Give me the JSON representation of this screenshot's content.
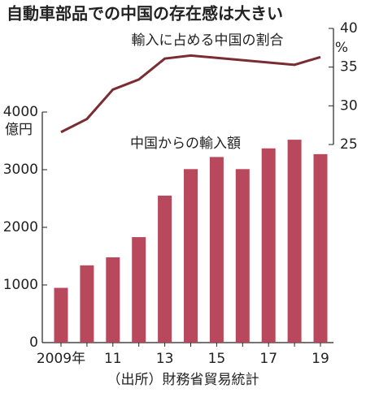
{
  "chart_data": {
    "type": "bar",
    "title": "自動車部品での中国の存在感は大きい",
    "categories": [
      "2009年",
      null,
      "11",
      null,
      "13",
      null,
      "15",
      null,
      "17",
      null,
      "19"
    ],
    "series": [
      {
        "name": "中国からの輸入額",
        "type": "bar",
        "color": "#b8495c",
        "values": [
          950,
          1340,
          1480,
          1830,
          2550,
          3010,
          3220,
          3010,
          3370,
          3520,
          3270
        ]
      },
      {
        "name": "輸入に占める中国の割合",
        "type": "line",
        "axis": "y2",
        "color": "#7a2c32",
        "values": [
          26.6,
          28.3,
          32.1,
          33.4,
          36.1,
          36.5,
          36.2,
          35.9,
          35.6,
          35.3,
          36.3
        ]
      }
    ],
    "ylim": [
      0,
      4000
    ],
    "yticks": [
      0,
      1000,
      2000,
      3000,
      4000
    ],
    "y_unit": "億円",
    "y2lim": [
      25,
      40
    ],
    "y2ticks": [
      25,
      30,
      35,
      40
    ],
    "y2_unit": "%",
    "source": "（出所）財務省貿易統計"
  }
}
